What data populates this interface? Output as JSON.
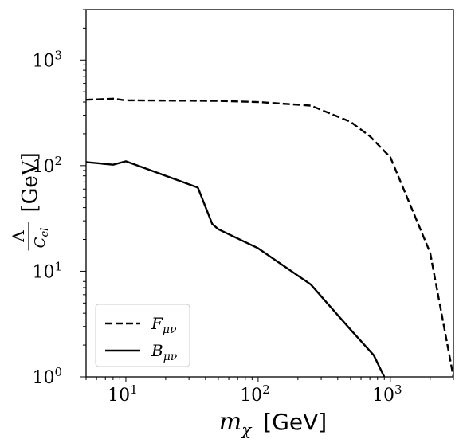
{
  "chart_data": {
    "type": "line",
    "xscale": "log",
    "yscale": "log",
    "xlim": [
      5,
      3000
    ],
    "ylim": [
      1,
      3000
    ],
    "grid": false,
    "legend_position": "lower-left",
    "xlabel": "m_χ [GeV]",
    "ylabel": "Λ / C_el [GeV]",
    "xticks": [
      {
        "value": 10,
        "base": "10",
        "exp": "1"
      },
      {
        "value": 100,
        "base": "10",
        "exp": "2"
      },
      {
        "value": 1000,
        "base": "10",
        "exp": "3"
      }
    ],
    "yticks": [
      {
        "value": 1,
        "base": "10",
        "exp": "0"
      },
      {
        "value": 10,
        "base": "10",
        "exp": "1"
      },
      {
        "value": 100,
        "base": "10",
        "exp": "2"
      },
      {
        "value": 1000,
        "base": "10",
        "exp": "3"
      }
    ],
    "series": [
      {
        "name": "F_μν",
        "style": "dashed",
        "color": "#000000",
        "x": [
          5,
          8,
          10,
          20,
          50,
          100,
          250,
          500,
          700,
          1000,
          2000,
          3000
        ],
        "y": [
          420,
          430,
          415,
          413,
          410,
          400,
          370,
          260,
          190,
          120,
          15,
          1
        ]
      },
      {
        "name": "B_μν",
        "style": "solid",
        "color": "#000000",
        "x": [
          5,
          8,
          10,
          35,
          45,
          50,
          100,
          250,
          500,
          750,
          900
        ],
        "y": [
          108,
          102,
          110,
          62,
          28,
          25,
          16.5,
          7.5,
          2.8,
          1.6,
          1
        ]
      }
    ]
  }
}
